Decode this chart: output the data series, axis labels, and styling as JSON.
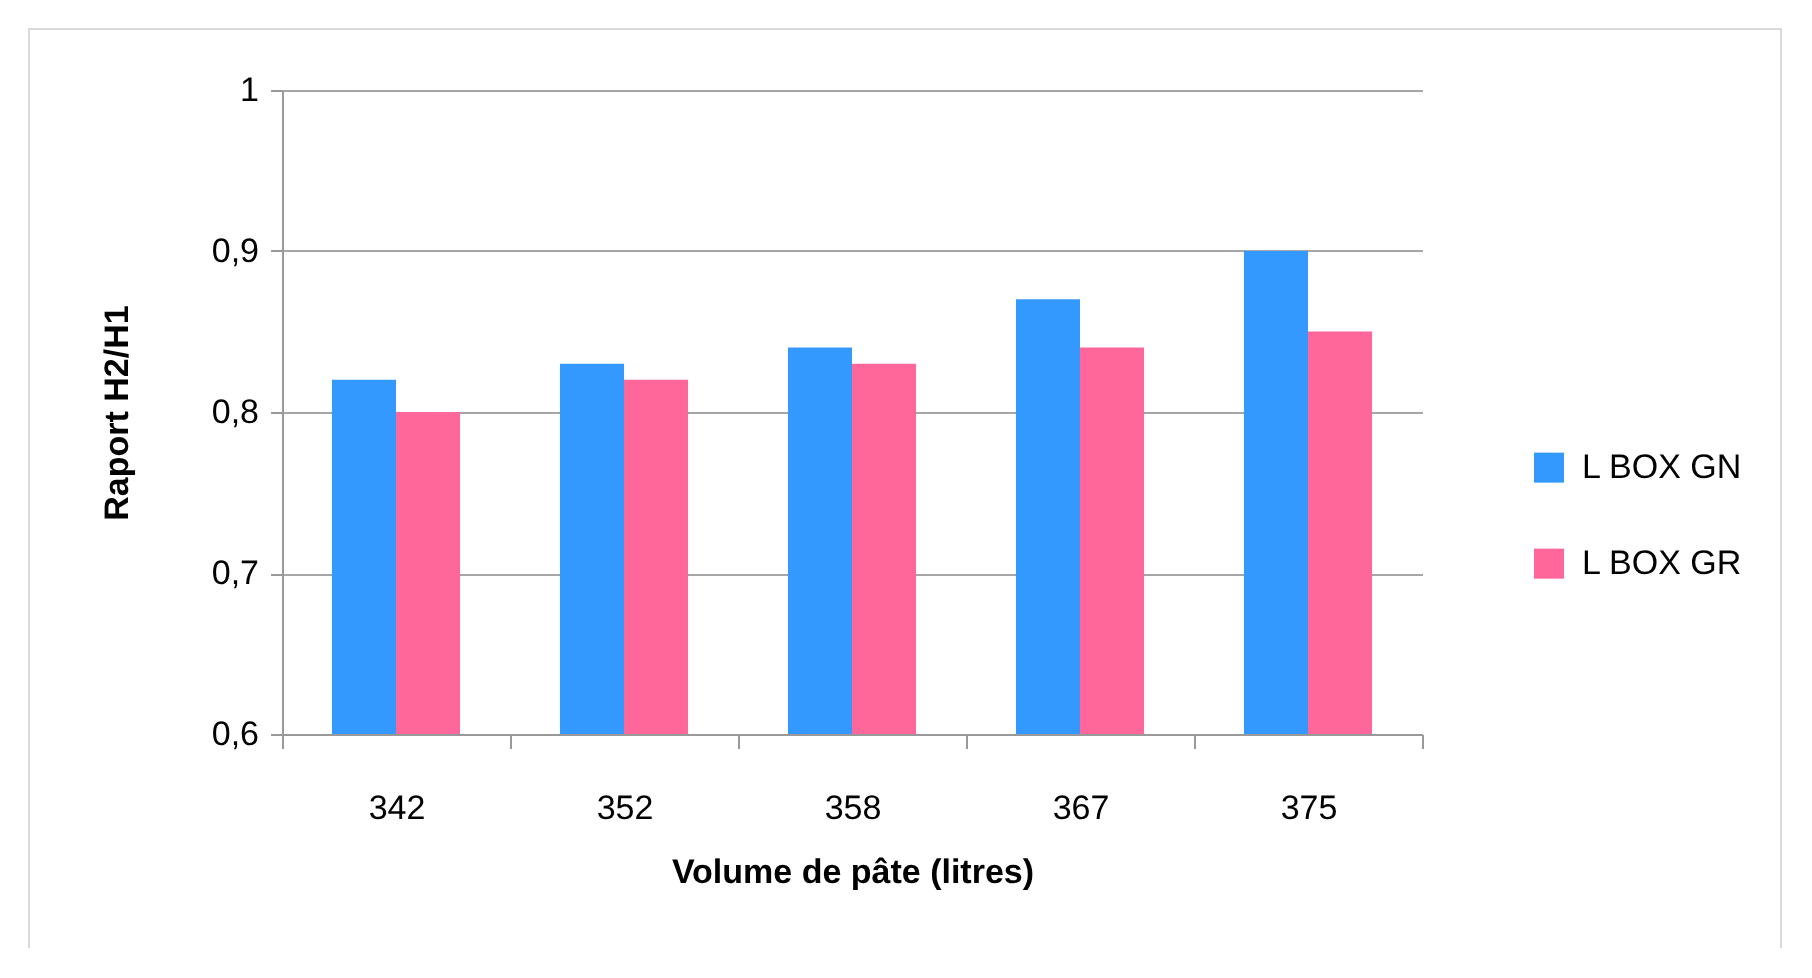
{
  "chart_data": {
    "type": "bar",
    "xlabel": "Volume de pâte (litres)",
    "ylabel": "Raport H2/H1",
    "categories": [
      "342",
      "352",
      "358",
      "367",
      "375"
    ],
    "series": [
      {
        "name": "L BOX GN",
        "color": "#3399ff",
        "values": [
          0.82,
          0.83,
          0.84,
          0.87,
          0.9
        ]
      },
      {
        "name": "L BOX GR",
        "color": "#ff6699",
        "values": [
          0.8,
          0.82,
          0.83,
          0.84,
          0.85
        ]
      }
    ],
    "ylim": [
      0.6,
      1
    ],
    "yticks": [
      {
        "value": 0.6,
        "label": "0,6"
      },
      {
        "value": 0.7,
        "label": "0,7"
      },
      {
        "value": 0.8,
        "label": "0,8"
      },
      {
        "value": 0.9,
        "label": "0,9"
      },
      1
    ],
    "grid": "y",
    "legend": "right"
  }
}
